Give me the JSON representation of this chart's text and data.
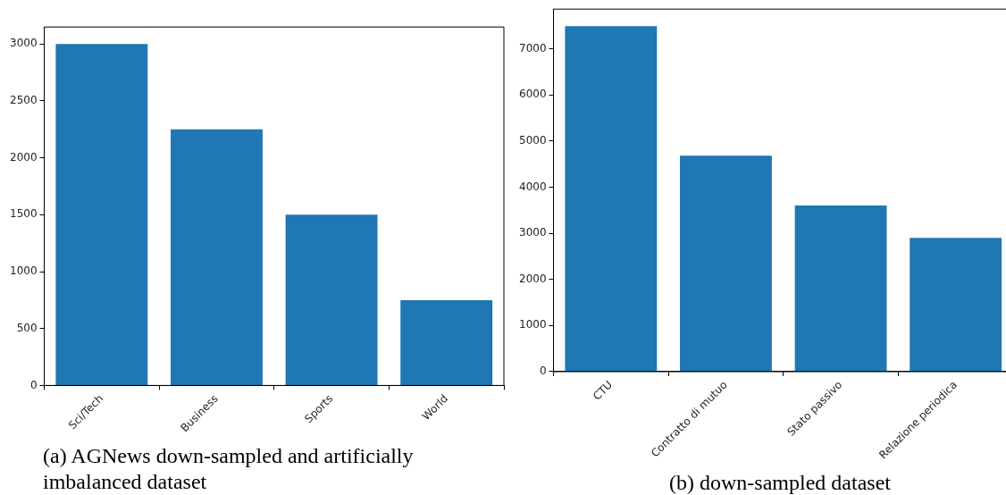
{
  "chart_data": [
    {
      "type": "bar",
      "categories": [
        "Sci/Tech",
        "Business",
        "Sports",
        "World"
      ],
      "values": [
        3000,
        2250,
        1500,
        750
      ],
      "color": "#1f77b4",
      "ylim": [
        0,
        3150
      ],
      "yticks": [
        0,
        500,
        1000,
        1500,
        2000,
        2500,
        3000
      ],
      "grid": false,
      "legend": false,
      "annotations": [
        "(a) AGNews down-sampled and artificially imbalanced dataset"
      ]
    },
    {
      "type": "bar",
      "categories": [
        "CTU",
        "Contratto di mutuo",
        "Stato passivo",
        "Relazione periodica"
      ],
      "values": [
        7490,
        4680,
        3600,
        2900
      ],
      "color": "#1f77b4",
      "ylim": [
        0,
        7860
      ],
      "yticks": [
        0,
        1000,
        2000,
        3000,
        4000,
        5000,
        6000,
        7000
      ],
      "grid": false,
      "legend": false,
      "annotations": [
        "(b) down-sampled dataset"
      ]
    }
  ]
}
